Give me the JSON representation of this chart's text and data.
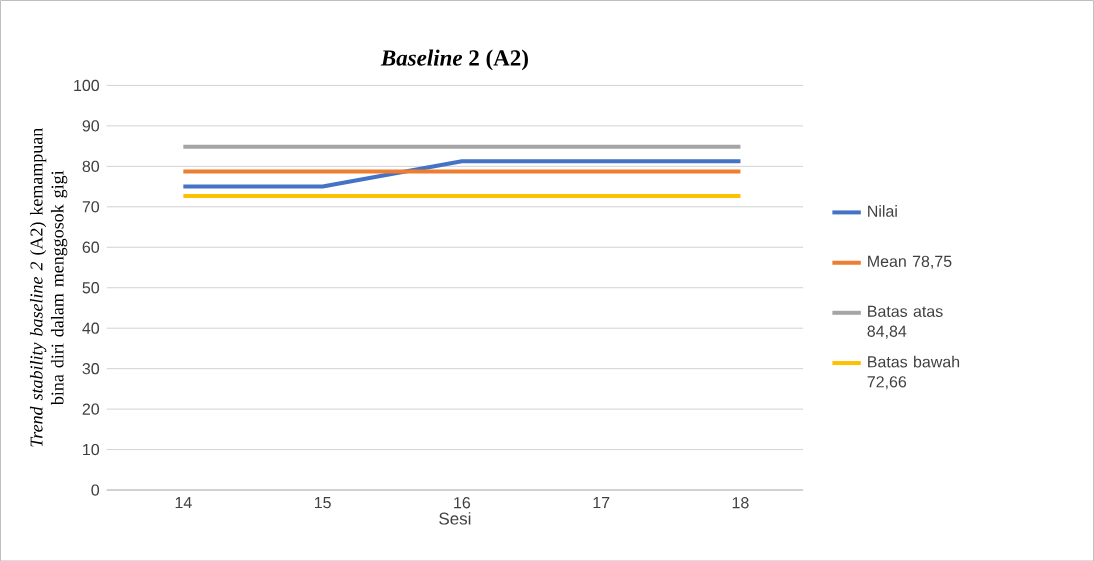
{
  "chart_data": {
    "type": "line",
    "title": "*Baseline* 2 (A2)",
    "xlabel": "Sesi",
    "ylabel": "*Trend stability baseline 2* (A2) kemampuan bina diri dalam menggosok gigi",
    "categories": [
      "14",
      "15",
      "16",
      "17",
      "18"
    ],
    "series": [
      {
        "name": "Nilai",
        "color": "#4472c4",
        "values": [
          75,
          75,
          81.25,
          81.25,
          81.25
        ]
      },
      {
        "name": "Mean 78,75",
        "color": "#ed7d31",
        "values": [
          78.75,
          78.75,
          78.75,
          78.75,
          78.75
        ]
      },
      {
        "name": "Batas atas 84,84",
        "color": "#a5a5a5",
        "values": [
          84.84,
          84.84,
          84.84,
          84.84,
          84.84
        ]
      },
      {
        "name": "Batas bawah 72,66",
        "color": "#ffc000",
        "values": [
          72.66,
          72.66,
          72.66,
          72.66,
          72.66
        ]
      }
    ],
    "ylim": [
      0,
      100
    ],
    "yticks": [
      0,
      10,
      20,
      30,
      40,
      50,
      60,
      70,
      80,
      90,
      100
    ],
    "grid": "y",
    "legend": "right",
    "marker": "none",
    "line_style": "solid"
  }
}
